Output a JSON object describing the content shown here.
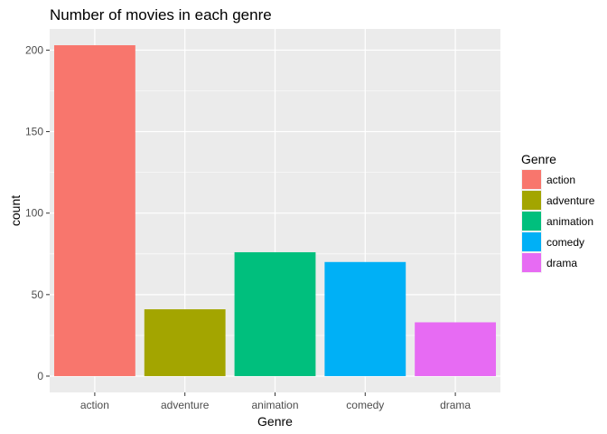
{
  "chart_data": {
    "type": "bar",
    "title": "Number of movies in each genre",
    "xlabel": "Genre",
    "ylabel": "count",
    "categories": [
      "action",
      "adventure",
      "animation",
      "comedy",
      "drama"
    ],
    "values": [
      203,
      41,
      76,
      70,
      33
    ],
    "colors": [
      "#F8766D",
      "#A3A500",
      "#00BF7D",
      "#00B0F6",
      "#E76BF3"
    ],
    "ylim": [
      -10,
      213
    ],
    "yticks": [
      0,
      50,
      100,
      150,
      200
    ],
    "grid": true,
    "legend": {
      "title": "Genre",
      "placement": "right",
      "items": [
        "action",
        "adventure",
        "animation",
        "comedy",
        "drama"
      ]
    }
  }
}
